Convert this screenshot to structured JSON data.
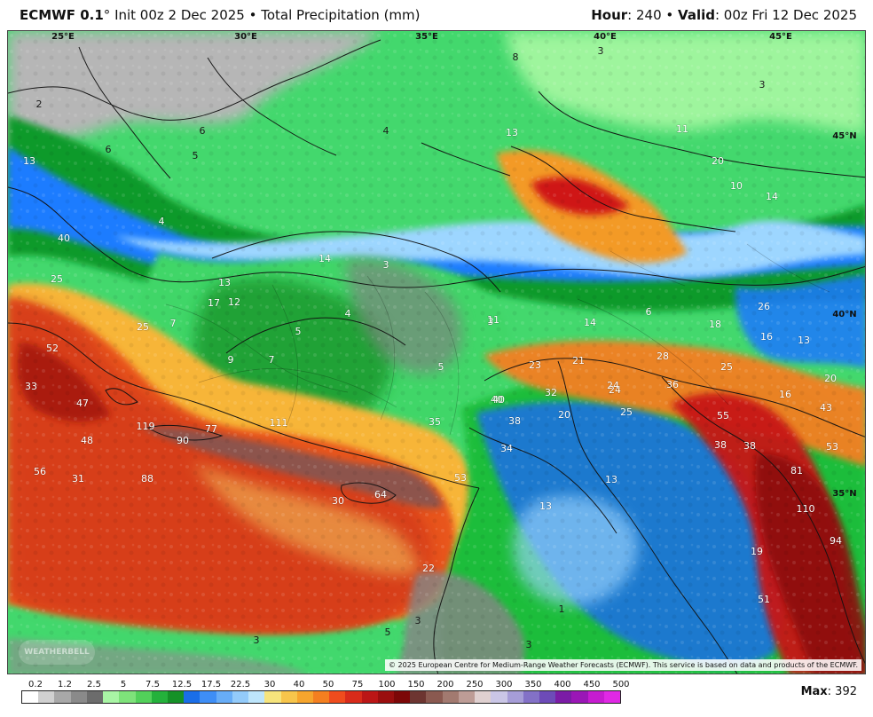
{
  "header": {
    "model": "ECMWF 0.1",
    "degree": "°",
    "init": "Init 00z 2 Dec 2025",
    "bullet": "•",
    "product": "Total Precipitation (mm)",
    "hour_label": "Hour",
    "hour_value": ": 240",
    "valid_label": "Valid",
    "valid_value": ": 00z Fri 12 Dec 2025"
  },
  "map": {
    "copyright": "© 2025 European Centre for Medium-Range Weather Forecasts (ECMWF). This service is based on data and products of the ECMWF.",
    "logo_text": "WEATHERBELL",
    "grid_labels": [
      "25°E",
      "30°E",
      "35°E",
      "40°E",
      "45°E",
      "45°N",
      "40°N",
      "35°N"
    ],
    "values": [
      "2",
      "13",
      "8",
      "3",
      "3",
      "6",
      "5",
      "6",
      "4",
      "4",
      "13",
      "11",
      "20",
      "10",
      "14",
      "40",
      "25",
      "52",
      "33",
      "47",
      "48",
      "56",
      "31",
      "88",
      "119",
      "90",
      "77",
      "111",
      "14",
      "3",
      "13",
      "12",
      "17",
      "25",
      "7",
      "9",
      "7",
      "5",
      "4",
      "3",
      "5",
      "11",
      "14",
      "6",
      "18",
      "26",
      "16",
      "13",
      "20",
      "16",
      "43",
      "53",
      "81",
      "110",
      "94",
      "55",
      "38",
      "38",
      "40",
      "36",
      "23",
      "24",
      "28",
      "25",
      "25",
      "21",
      "32",
      "24",
      "20",
      "38",
      "40",
      "34",
      "53",
      "64",
      "30",
      "13",
      "13",
      "19",
      "51",
      "35",
      "1",
      "3",
      "5",
      "3",
      "22",
      "3"
    ]
  },
  "legend": {
    "labels": [
      "0.2",
      "1.2",
      "2.5",
      "5",
      "7.5",
      "12.5",
      "17.5",
      "22.5",
      "30",
      "40",
      "50",
      "75",
      "100",
      "150",
      "200",
      "250",
      "300",
      "350",
      "400",
      "450",
      "500"
    ],
    "colors": [
      "#ffffff",
      "#d0d0d0",
      "#a8a8a8",
      "#8a8a8a",
      "#6c6c6c",
      "#a9f5a5",
      "#7ee27a",
      "#52d05a",
      "#24b13b",
      "#159127",
      "#1a6ee8",
      "#3e8ef6",
      "#67adf7",
      "#93cbfa",
      "#bde5fb",
      "#f6e47c",
      "#f7c54b",
      "#f6a52d",
      "#f47f20",
      "#ef4c1d",
      "#d82b1a",
      "#bb1616",
      "#9a0e0e",
      "#7c0707",
      "#6d3531",
      "#8a5950",
      "#a27a70",
      "#bd9c96",
      "#dfd0d0",
      "#cac6e6",
      "#a69dd7",
      "#8371c7",
      "#6d4bb8",
      "#7b1ca6",
      "#9a17b6",
      "#c61cd0",
      "#e028e5"
    ],
    "max_label": "Max",
    "max_value": ": 392"
  }
}
